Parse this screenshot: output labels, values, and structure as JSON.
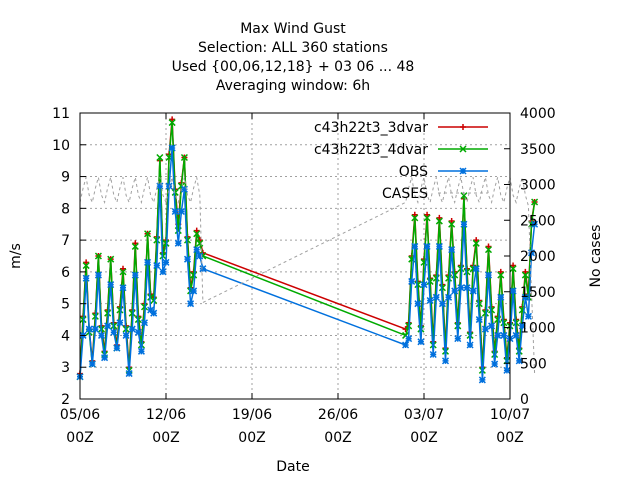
{
  "chart_data": {
    "type": "line",
    "title_lines": [
      "Max Wind Gust",
      "Selection: ALL    360 stations",
      "Used {00,06,12,18} + 03 06 ... 48",
      "Averaging window:  6h"
    ],
    "xlabel": "Date",
    "ylabel": "m/s",
    "y2label": "No cases",
    "x_axis_type": "time (days from 05/06 00Z)",
    "x_ticks": [
      {
        "value": 0,
        "line1": "05/06",
        "line2": "00Z"
      },
      {
        "value": 7,
        "line1": "12/06",
        "line2": "00Z"
      },
      {
        "value": 14,
        "line1": "19/06",
        "line2": "00Z"
      },
      {
        "value": 21,
        "line1": "26/06",
        "line2": "00Z"
      },
      {
        "value": 28,
        "line1": "03/07",
        "line2": "00Z"
      },
      {
        "value": 35,
        "line1": "10/07",
        "line2": "00Z"
      }
    ],
    "xlim": [
      0,
      35
    ],
    "ylim": [
      2,
      11
    ],
    "y_ticks": [
      2,
      3,
      4,
      5,
      6,
      7,
      8,
      9,
      10,
      11
    ],
    "y2lim": [
      0,
      4000
    ],
    "y2_ticks": [
      0,
      500,
      1000,
      1500,
      2000,
      2500,
      3000,
      3500,
      4000
    ],
    "grid": true,
    "legend_position": "top-right",
    "series": [
      {
        "name": "c43h22t3_3dvar",
        "color": "#cc0000",
        "marker": "plus",
        "axis": "y",
        "x": [
          0,
          0.25,
          0.5,
          0.75,
          1,
          1.25,
          1.5,
          1.75,
          2,
          2.25,
          2.5,
          2.75,
          3,
          3.25,
          3.5,
          3.75,
          4,
          4.25,
          4.5,
          4.75,
          5,
          5.25,
          5.5,
          5.75,
          6,
          6.25,
          6.5,
          6.75,
          7,
          7.25,
          7.5,
          7.75,
          8,
          8.25,
          8.5,
          8.75,
          9,
          9.25,
          9.5,
          9.75,
          10,
          26.5,
          26.75,
          27,
          27.25,
          27.5,
          27.75,
          28,
          28.25,
          28.5,
          28.75,
          29,
          29.25,
          29.5,
          29.75,
          30,
          30.25,
          30.5,
          30.75,
          31,
          31.25,
          31.5,
          31.75,
          32,
          32.25,
          32.5,
          32.75,
          33,
          33.25,
          33.5,
          33.75,
          34,
          34.25,
          34.5,
          34.75,
          35,
          35.25,
          35.5,
          35.75,
          36,
          36.25,
          36.5,
          36.75,
          37
        ],
        "y": [
          2.8,
          4.6,
          6.3,
          4.2,
          3.2,
          4.7,
          6.5,
          4.3,
          3.5,
          4.8,
          6.4,
          4.4,
          3.7,
          4.9,
          6.1,
          4.3,
          3.0,
          4.8,
          6.9,
          4.6,
          3.8,
          5.0,
          7.2,
          5.3,
          5.2,
          7.1,
          9.5,
          6.6,
          7.0,
          9.7,
          10.8,
          8.6,
          7.5,
          8.8,
          9.6,
          7.1,
          5.5,
          6.0,
          7.3,
          7.0,
          6.6,
          4.2,
          4.4,
          6.5,
          7.8,
          5.7,
          4.3,
          6.4,
          7.8,
          5.8,
          3.8,
          5.9,
          7.7,
          5.6,
          3.6,
          5.9,
          7.6,
          6.0,
          4.4,
          6.2,
          8.3,
          6.1,
          4.1,
          6.2,
          7.0,
          5.1,
          3.0,
          4.8,
          6.8,
          4.9,
          3.5,
          4.6,
          6.0,
          4.5,
          3.3,
          4.4,
          6.2,
          4.5,
          3.6,
          4.9,
          6.0,
          5.3,
          7.6,
          8.2
        ]
      },
      {
        "name": "c43h22t3_4dvar",
        "color": "#00aa00",
        "marker": "cross",
        "axis": "y",
        "x": [
          0,
          0.25,
          0.5,
          0.75,
          1,
          1.25,
          1.5,
          1.75,
          2,
          2.25,
          2.5,
          2.75,
          3,
          3.25,
          3.5,
          3.75,
          4,
          4.25,
          4.5,
          4.75,
          5,
          5.25,
          5.5,
          5.75,
          6,
          6.25,
          6.5,
          6.75,
          7,
          7.25,
          7.5,
          7.75,
          8,
          8.25,
          8.5,
          8.75,
          9,
          9.25,
          9.5,
          9.75,
          10,
          26.5,
          26.75,
          27,
          27.25,
          27.5,
          27.75,
          28,
          28.25,
          28.5,
          28.75,
          29,
          29.25,
          29.5,
          29.75,
          30,
          30.25,
          30.5,
          30.75,
          31,
          31.25,
          31.5,
          31.75,
          32,
          32.25,
          32.5,
          32.75,
          33,
          33.25,
          33.5,
          33.75,
          34,
          34.25,
          34.5,
          34.75,
          35,
          35.25,
          35.5,
          35.75,
          36,
          36.25,
          36.5,
          36.75,
          37
        ],
        "y": [
          2.7,
          4.5,
          6.2,
          4.1,
          3.1,
          4.6,
          6.5,
          4.2,
          3.4,
          4.7,
          6.4,
          4.3,
          3.6,
          4.8,
          6.0,
          4.2,
          2.9,
          4.7,
          6.8,
          4.5,
          3.7,
          4.9,
          7.2,
          5.2,
          5.1,
          7.0,
          9.6,
          6.5,
          6.9,
          9.6,
          10.7,
          8.5,
          7.3,
          8.7,
          9.6,
          7.0,
          5.4,
          5.9,
          7.2,
          6.9,
          6.5,
          4.0,
          4.3,
          6.4,
          7.7,
          5.6,
          4.2,
          6.3,
          7.7,
          5.7,
          3.7,
          5.8,
          7.6,
          5.5,
          3.5,
          5.8,
          7.5,
          5.9,
          4.3,
          6.1,
          8.4,
          6.0,
          4.0,
          6.1,
          6.9,
          5.0,
          2.9,
          4.7,
          6.7,
          4.8,
          3.4,
          4.5,
          5.9,
          4.4,
          3.2,
          4.3,
          6.1,
          4.4,
          3.5,
          4.8,
          5.9,
          5.2,
          7.5,
          8.2
        ]
      },
      {
        "name": "OBS",
        "color": "#0070dd",
        "marker": "star",
        "axis": "y",
        "x": [
          0,
          0.25,
          0.5,
          0.75,
          1,
          1.25,
          1.5,
          1.75,
          2,
          2.25,
          2.5,
          2.75,
          3,
          3.25,
          3.5,
          3.75,
          4,
          4.25,
          4.5,
          4.75,
          5,
          5.25,
          5.5,
          5.75,
          6,
          6.25,
          6.5,
          6.75,
          7,
          7.25,
          7.5,
          7.75,
          8,
          8.25,
          8.5,
          8.75,
          9,
          9.25,
          9.5,
          9.75,
          10,
          26.5,
          26.75,
          27,
          27.25,
          27.5,
          27.75,
          28,
          28.25,
          28.5,
          28.75,
          29,
          29.25,
          29.5,
          29.75,
          30,
          30.25,
          30.5,
          30.75,
          31,
          31.25,
          31.5,
          31.75,
          32,
          32.25,
          32.5,
          32.75,
          33,
          33.25,
          33.5,
          33.75,
          34,
          34.25,
          34.5,
          34.75,
          35,
          35.25,
          35.5,
          35.75,
          36,
          36.25,
          36.5,
          36.75,
          37
        ],
        "y": [
          2.7,
          4.0,
          5.8,
          4.2,
          3.1,
          4.2,
          5.9,
          4.0,
          3.3,
          4.3,
          5.6,
          4.1,
          3.6,
          4.4,
          5.5,
          4.0,
          2.8,
          4.2,
          5.9,
          4.1,
          3.5,
          4.4,
          6.3,
          4.8,
          4.7,
          6.2,
          8.7,
          6.0,
          6.3,
          8.7,
          9.9,
          7.9,
          6.9,
          7.9,
          8.6,
          6.4,
          5.0,
          5.4,
          6.7,
          6.5,
          6.1,
          3.7,
          3.9,
          5.7,
          6.8,
          5.0,
          3.8,
          5.6,
          6.8,
          5.1,
          3.4,
          5.2,
          6.8,
          5.0,
          3.2,
          5.2,
          6.7,
          5.4,
          3.9,
          5.5,
          7.5,
          5.5,
          3.7,
          5.4,
          6.1,
          4.5,
          2.6,
          4.2,
          5.9,
          4.3,
          3.1,
          4.0,
          5.2,
          4.0,
          2.9,
          3.9,
          5.4,
          4.0,
          3.2,
          4.3,
          5.2,
          4.6,
          6.6,
          7.5
        ]
      },
      {
        "name": "CASES",
        "color": "#a0a0a0",
        "marker": "none",
        "dashed": true,
        "axis": "y2",
        "x": [
          0,
          0.25,
          0.5,
          0.75,
          1,
          1.25,
          1.5,
          1.75,
          2,
          2.25,
          2.5,
          2.75,
          3,
          3.25,
          3.5,
          3.75,
          4,
          4.25,
          4.5,
          4.75,
          5,
          5.25,
          5.5,
          5.75,
          6,
          6.25,
          6.5,
          6.75,
          7,
          7.25,
          7.5,
          7.75,
          8,
          8.25,
          8.5,
          8.75,
          9,
          9.25,
          9.5,
          9.75,
          10,
          26.5,
          26.75,
          27,
          27.25,
          27.5,
          27.75,
          28,
          28.25,
          28.5,
          28.75,
          29,
          29.25,
          29.5,
          29.75,
          30,
          30.25,
          30.5,
          30.75,
          31,
          31.25,
          31.5,
          31.75,
          32,
          32.25,
          32.5,
          32.75,
          33,
          33.25,
          33.5,
          33.75,
          34,
          34.25,
          34.5,
          34.75,
          35,
          35.25,
          35.5,
          35.75,
          36,
          36.25,
          36.5,
          36.75,
          37
        ],
        "y": [
          2750,
          2950,
          3100,
          2850,
          2750,
          2950,
          3100,
          2850,
          2750,
          2950,
          3100,
          2850,
          2750,
          2950,
          3100,
          2850,
          2750,
          2950,
          3100,
          2850,
          2750,
          2950,
          3100,
          2850,
          2750,
          2950,
          3100,
          2850,
          2750,
          2950,
          3100,
          2850,
          2750,
          2950,
          3100,
          2850,
          2750,
          2950,
          3100,
          2850,
          1350,
          2750,
          2950,
          3100,
          2850,
          2750,
          2950,
          3100,
          2850,
          2750,
          2950,
          3100,
          2850,
          2750,
          2950,
          3100,
          2850,
          2750,
          2950,
          3100,
          2850,
          2750,
          2950,
          3100,
          2850,
          2750,
          2950,
          3100,
          2850,
          2750,
          2950,
          3100,
          2850,
          2750,
          2950,
          3100,
          2850,
          2750,
          2950,
          3100,
          2850,
          2700,
          1500,
          350
        ]
      }
    ]
  }
}
